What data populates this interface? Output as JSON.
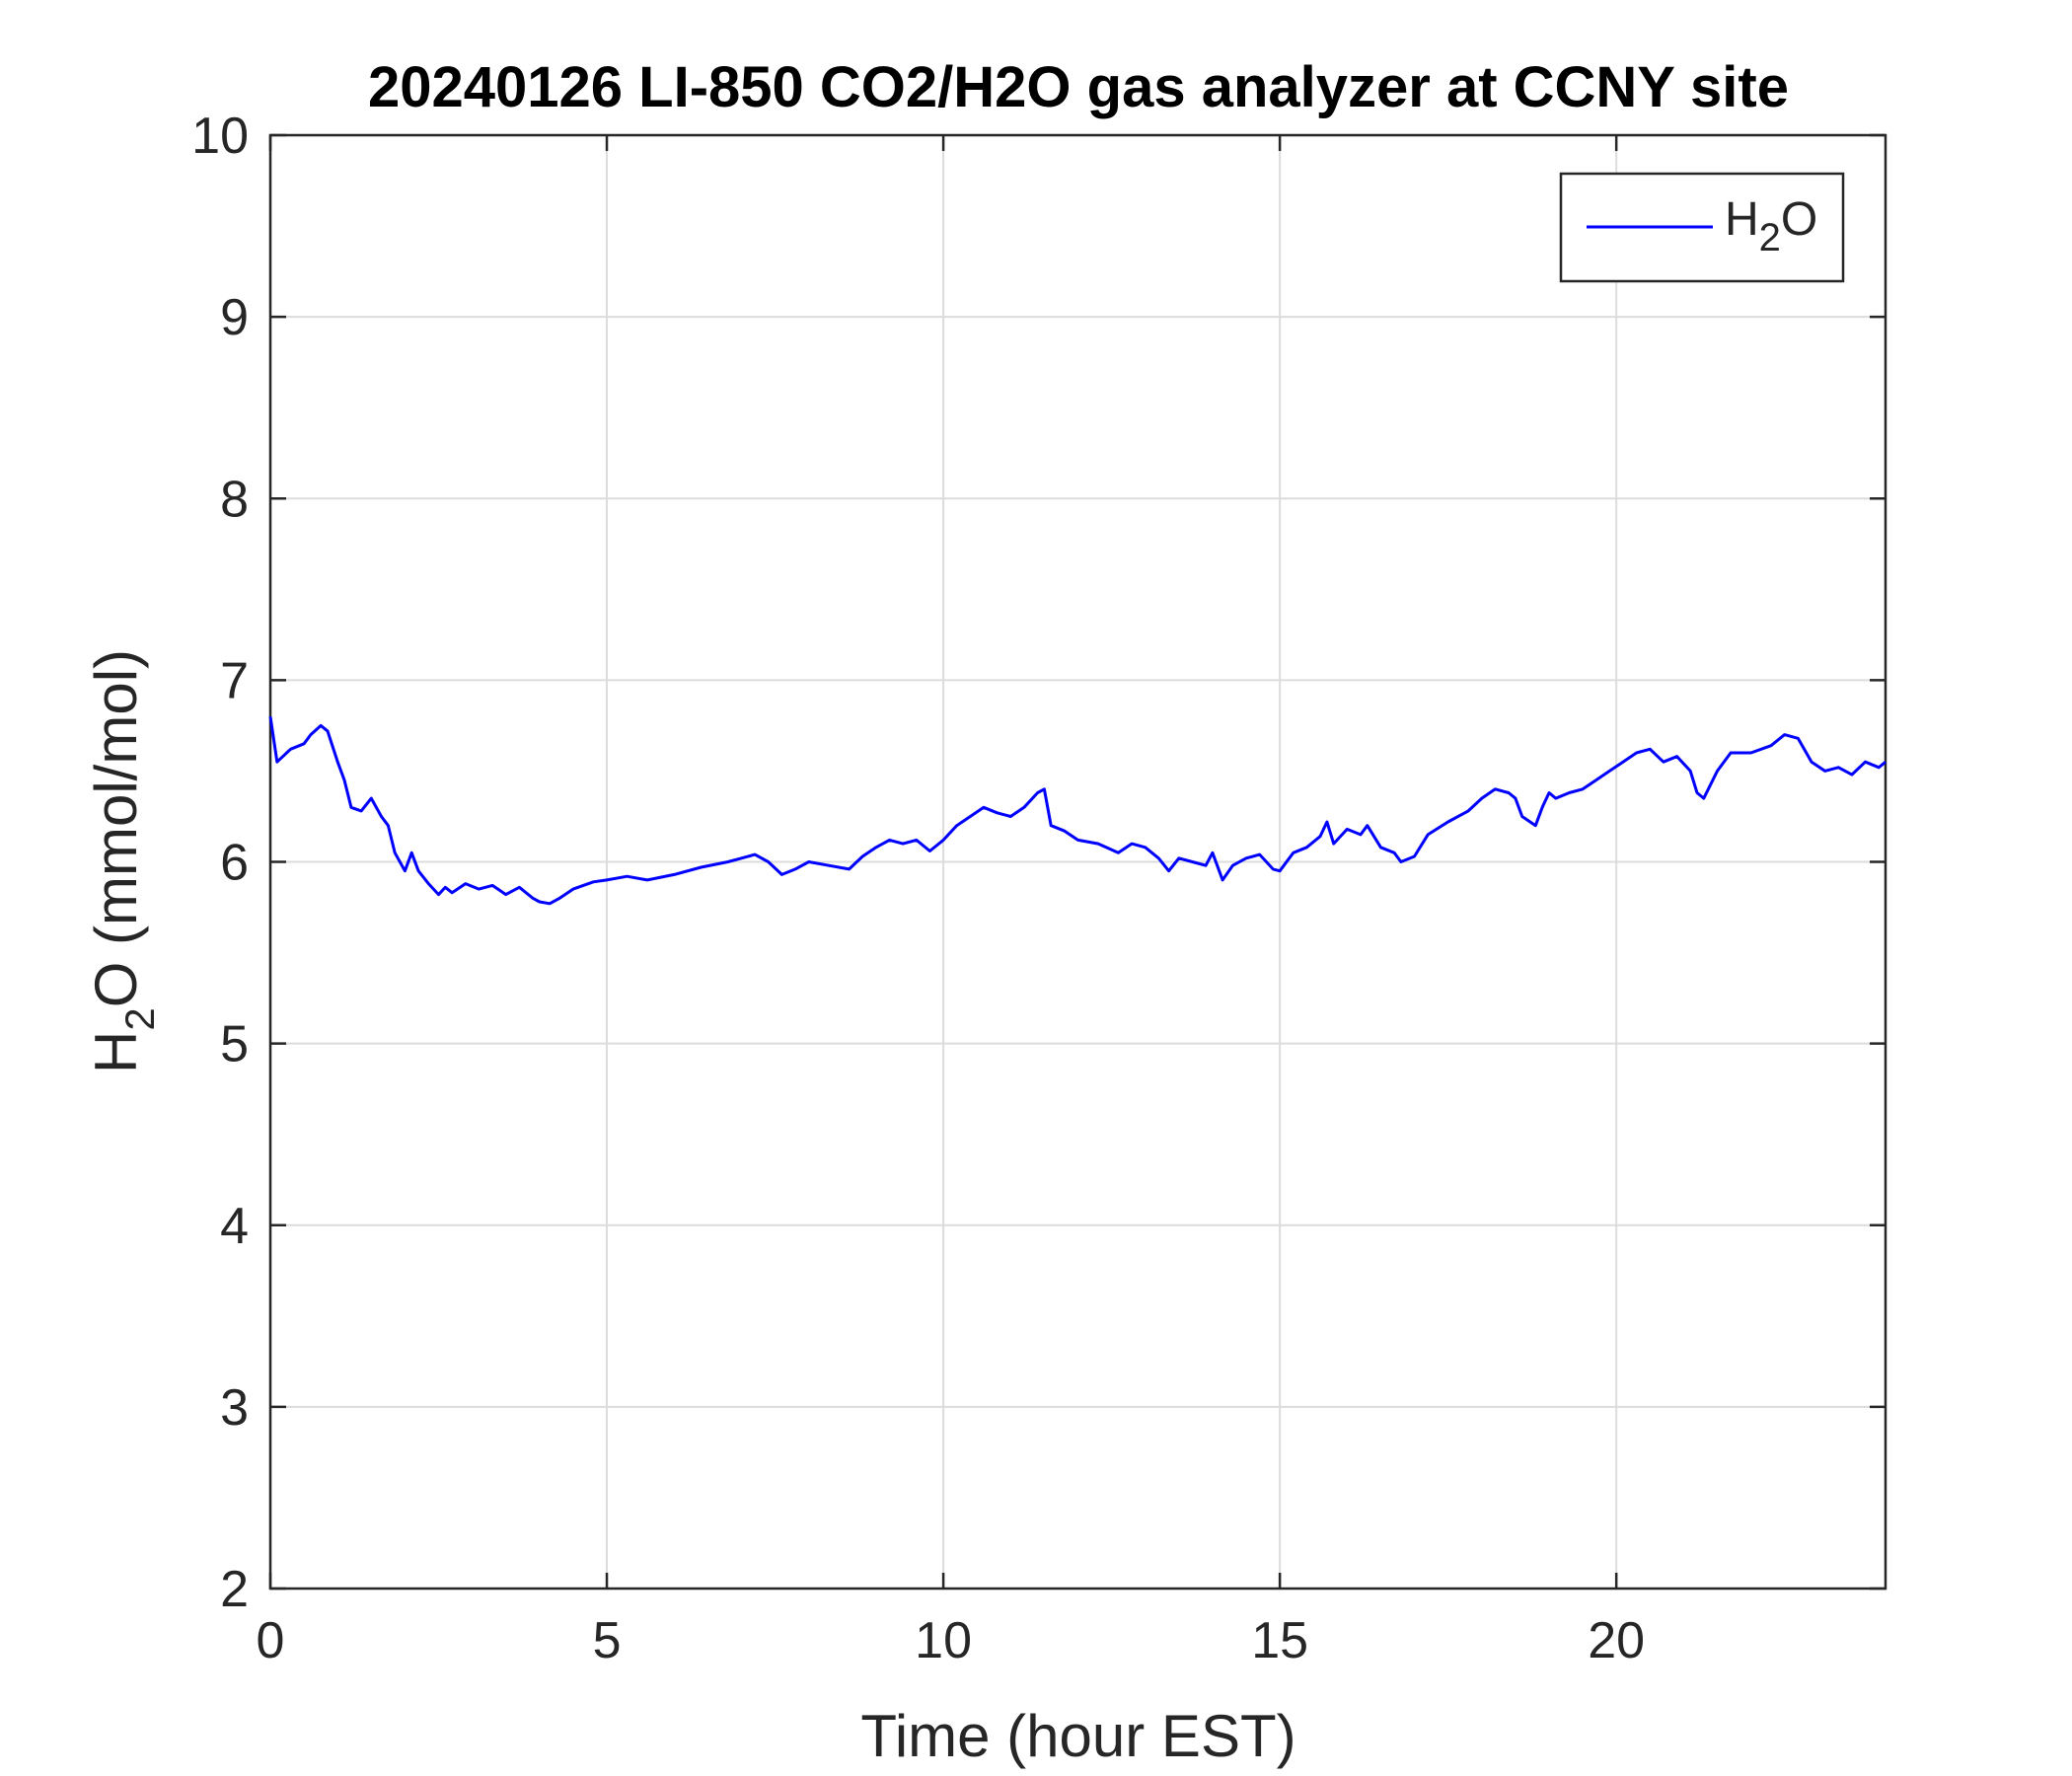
{
  "chart_data": {
    "type": "line",
    "title": "20240126 LI-850 CO2/H2O gas analyzer at CCNY site",
    "xlabel": "Time (hour EST)",
    "ylabel": {
      "main": "H",
      "sub": "2",
      "rest": "O (mmol/mol)"
    },
    "xlim": [
      0,
      24
    ],
    "ylim": [
      2,
      10
    ],
    "xticks": [
      0,
      5,
      10,
      15,
      20
    ],
    "yticks": [
      2,
      3,
      4,
      5,
      6,
      7,
      8,
      9,
      10
    ],
    "grid": true,
    "legend_position": "top-right",
    "series": [
      {
        "legend": {
          "main": "H",
          "sub": "2",
          "rest": "O"
        },
        "color": "#0000ff",
        "x": [
          0,
          0.1,
          0.3,
          0.5,
          0.6,
          0.75,
          0.85,
          1.0,
          1.1,
          1.2,
          1.35,
          1.5,
          1.65,
          1.75,
          1.85,
          2.0,
          2.1,
          2.2,
          2.35,
          2.5,
          2.6,
          2.7,
          2.9,
          3.1,
          3.3,
          3.5,
          3.7,
          3.9,
          4.0,
          4.15,
          4.3,
          4.5,
          4.8,
          5.0,
          5.3,
          5.6,
          6.0,
          6.4,
          6.8,
          7.0,
          7.2,
          7.4,
          7.6,
          7.8,
          8.0,
          8.3,
          8.6,
          8.8,
          9.0,
          9.2,
          9.4,
          9.6,
          9.8,
          10.0,
          10.2,
          10.4,
          10.6,
          10.8,
          11.0,
          11.2,
          11.4,
          11.5,
          11.6,
          11.8,
          12.0,
          12.3,
          12.6,
          12.8,
          13.0,
          13.2,
          13.35,
          13.5,
          13.7,
          13.9,
          14.0,
          14.15,
          14.3,
          14.5,
          14.7,
          14.9,
          15.0,
          15.2,
          15.4,
          15.6,
          15.7,
          15.8,
          16.0,
          16.2,
          16.3,
          16.5,
          16.7,
          16.8,
          17.0,
          17.2,
          17.5,
          17.8,
          18.0,
          18.2,
          18.4,
          18.5,
          18.6,
          18.8,
          18.9,
          19.0,
          19.1,
          19.3,
          19.5,
          19.7,
          19.9,
          20.1,
          20.3,
          20.5,
          20.7,
          20.9,
          21.1,
          21.2,
          21.3,
          21.5,
          21.7,
          22.0,
          22.3,
          22.5,
          22.7,
          22.9,
          23.1,
          23.3,
          23.5,
          23.7,
          23.9,
          24.0
        ],
        "y": [
          6.8,
          6.55,
          6.62,
          6.65,
          6.7,
          6.75,
          6.72,
          6.55,
          6.45,
          6.3,
          6.28,
          6.35,
          6.25,
          6.2,
          6.05,
          5.95,
          6.05,
          5.95,
          5.88,
          5.82,
          5.86,
          5.83,
          5.88,
          5.85,
          5.87,
          5.82,
          5.86,
          5.8,
          5.78,
          5.77,
          5.8,
          5.85,
          5.89,
          5.9,
          5.92,
          5.9,
          5.93,
          5.97,
          6.0,
          6.02,
          6.04,
          6.0,
          5.93,
          5.96,
          6.0,
          5.98,
          5.96,
          6.03,
          6.08,
          6.12,
          6.1,
          6.12,
          6.06,
          6.12,
          6.2,
          6.25,
          6.3,
          6.27,
          6.25,
          6.3,
          6.38,
          6.4,
          6.2,
          6.17,
          6.12,
          6.1,
          6.05,
          6.1,
          6.08,
          6.02,
          5.95,
          6.02,
          6.0,
          5.98,
          6.05,
          5.9,
          5.98,
          6.02,
          6.04,
          5.96,
          5.95,
          6.05,
          6.08,
          6.14,
          6.22,
          6.1,
          6.18,
          6.15,
          6.2,
          6.08,
          6.05,
          6.0,
          6.03,
          6.15,
          6.22,
          6.28,
          6.35,
          6.4,
          6.38,
          6.35,
          6.25,
          6.2,
          6.3,
          6.38,
          6.35,
          6.38,
          6.4,
          6.45,
          6.5,
          6.55,
          6.6,
          6.62,
          6.55,
          6.58,
          6.5,
          6.38,
          6.35,
          6.5,
          6.6,
          6.6,
          6.64,
          6.7,
          6.68,
          6.55,
          6.5,
          6.52,
          6.48,
          6.55,
          6.52,
          6.55
        ]
      }
    ]
  }
}
